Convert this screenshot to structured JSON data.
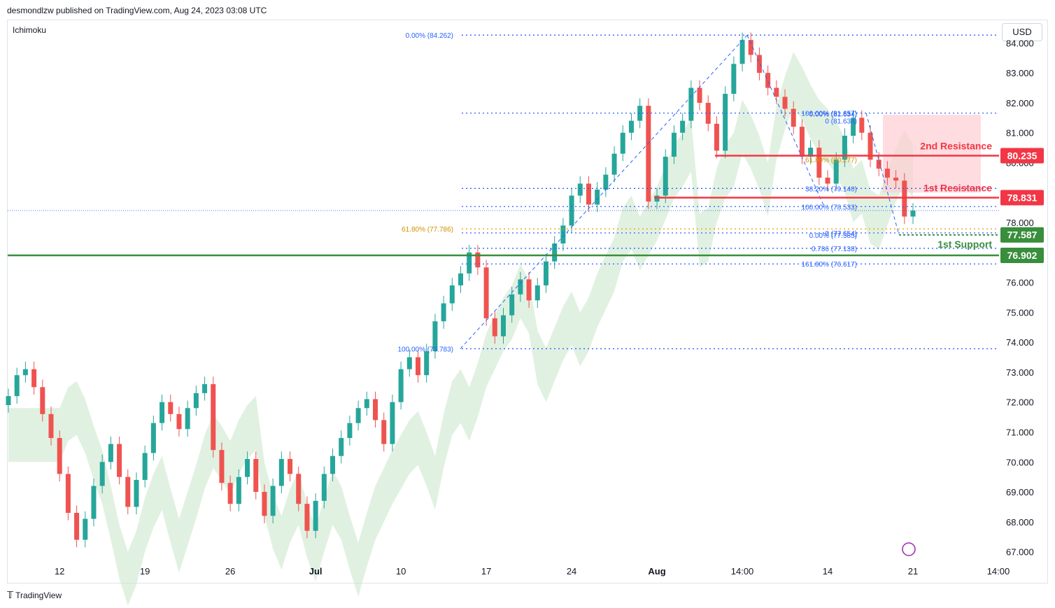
{
  "header": {
    "published_text": "desmondlzw published on TradingView.com, Aug 24, 2023 03:08 UTC"
  },
  "footer": {
    "brand": "TradingView",
    "logo_glyph": "𝕋"
  },
  "indicator_label": "Ichimoku",
  "currency": "USD",
  "colors": {
    "up": "#26a69a",
    "down": "#ef5350",
    "resistance": "#f23645",
    "support": "#388e3c",
    "fib_blue": "#2962ff",
    "fib_orange": "#f2a000",
    "cloud_green": "#c8e6c9",
    "cloud_red": "#ffcdd2"
  },
  "chart_data": {
    "type": "candlestick",
    "y_axis": {
      "min": 66.5,
      "max": 84.5,
      "ticks": [
        "67.000",
        "68.000",
        "69.000",
        "70.000",
        "71.000",
        "72.000",
        "73.000",
        "74.000",
        "75.000",
        "76.000",
        "77.000",
        "78.000",
        "79.000",
        "80.000",
        "81.000",
        "82.000",
        "83.000",
        "84.000"
      ]
    },
    "x_axis": {
      "ticks": [
        {
          "label": "12",
          "i": 6
        },
        {
          "label": "19",
          "i": 16
        },
        {
          "label": "26",
          "i": 26
        },
        {
          "label": "Jul",
          "i": 36
        },
        {
          "label": "10",
          "i": 46
        },
        {
          "label": "17",
          "i": 56
        },
        {
          "label": "24",
          "i": 66
        },
        {
          "label": "Aug",
          "i": 76
        },
        {
          "label": "14:00",
          "i": 86
        },
        {
          "label": "14",
          "i": 96
        },
        {
          "label": "21",
          "i": 106
        },
        {
          "label": "14:00",
          "i": 116
        }
      ]
    },
    "levels": [
      {
        "name": "2nd Resistance",
        "value": 80.235,
        "tag": "80.235",
        "kind": "resistance"
      },
      {
        "name": "1st Resistance",
        "value": 78.831,
        "tag": "78.831",
        "kind": "resistance"
      },
      {
        "name": "",
        "value": 77.587,
        "tag": "77.587",
        "kind": "support-dotted"
      },
      {
        "name": "1st Support",
        "value": 76.902,
        "tag": "76.902",
        "kind": "support"
      }
    ],
    "fib_labels": [
      {
        "text": "0.00% (84.262)",
        "value": 84.262,
        "color": "blue"
      },
      {
        "text": "61.80% (77.786)",
        "value": 77.786,
        "color": "orange"
      },
      {
        "text": "100.00% (73.783)",
        "value": 73.783,
        "color": "blue"
      },
      {
        "text": "0.00% (81.634)",
        "value": 81.634,
        "color": "blue"
      },
      {
        "text": "100.00% (81.657)",
        "value": 81.657,
        "color": "blue"
      },
      {
        "text": "0 (81.634)",
        "value": 81.4,
        "color": "blue"
      },
      {
        "text": "61.80% (80.277)",
        "value": 80.1,
        "color": "orange"
      },
      {
        "text": "38.20% (79.140)",
        "value": 79.14,
        "color": "blue"
      },
      {
        "text": "100.00% (78.533)",
        "value": 78.533,
        "color": "blue"
      },
      {
        "text": "0 (77.654)",
        "value": 77.654,
        "color": "blue"
      },
      {
        "text": "0.00% (77.585)",
        "value": 77.585,
        "color": "blue"
      },
      {
        "text": "0.786 (77.138)",
        "value": 77.138,
        "color": "blue"
      },
      {
        "text": "161.80% (76.617)",
        "value": 76.617,
        "color": "blue"
      }
    ],
    "closes": [
      72.2,
      72.9,
      73.1,
      72.5,
      71.6,
      70.8,
      69.6,
      68.3,
      67.4,
      68.1,
      69.2,
      70.0,
      70.6,
      69.5,
      68.5,
      69.4,
      70.3,
      71.3,
      72.0,
      71.6,
      71.1,
      71.8,
      72.3,
      72.6,
      70.4,
      69.3,
      68.6,
      69.5,
      70.1,
      69.0,
      68.2,
      69.2,
      70.1,
      69.6,
      68.6,
      67.7,
      68.7,
      69.6,
      70.2,
      70.8,
      71.3,
      71.8,
      72.1,
      71.4,
      70.6,
      72.0,
      73.1,
      73.5,
      72.9,
      73.7,
      74.7,
      75.3,
      75.9,
      76.3,
      77.0,
      76.5,
      74.8,
      74.2,
      74.9,
      75.6,
      76.1,
      75.4,
      75.9,
      76.7,
      77.3,
      77.9,
      78.9,
      79.3,
      78.6,
      79.1,
      79.6,
      80.3,
      81.0,
      81.4,
      81.9,
      78.7,
      78.9,
      80.2,
      81.0,
      81.4,
      82.5,
      82.0,
      81.3,
      80.4,
      82.3,
      83.3,
      84.1,
      83.6,
      83.0,
      82.5,
      82.2,
      81.8,
      81.2,
      80.2,
      80.5,
      79.5,
      79.3,
      80.1,
      80.9,
      81.5,
      81.0,
      80.1,
      79.8,
      79.5,
      79.4,
      78.2,
      78.4
    ]
  }
}
